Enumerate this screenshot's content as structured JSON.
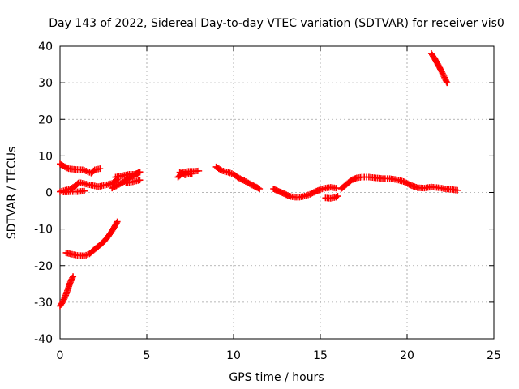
{
  "chart_data": {
    "type": "scatter",
    "title": "Day 143 of 2022, Sidereal Day-to-day VTEC variation (SDTVAR) for receiver vis0",
    "xlabel": "GPS time / hours",
    "ylabel": "SDTVAR / TECUs",
    "xlim": [
      0,
      25
    ],
    "ylim": [
      -40,
      40
    ],
    "xticks": [
      0,
      5,
      10,
      15,
      20,
      25
    ],
    "yticks": [
      -40,
      -30,
      -20,
      -10,
      0,
      10,
      20,
      30,
      40
    ],
    "grid": true,
    "marker": "plus",
    "color": "#ff0000",
    "series": [
      {
        "name": "arc-1",
        "points": [
          [
            0.0,
            -31
          ],
          [
            0.15,
            -30
          ],
          [
            0.3,
            -28.5
          ],
          [
            0.45,
            -26.5
          ],
          [
            0.6,
            -24.5
          ],
          [
            0.75,
            -23
          ]
        ]
      },
      {
        "name": "arc-2",
        "points": [
          [
            0.35,
            -16.5
          ],
          [
            0.6,
            -16.8
          ],
          [
            1.0,
            -17.2
          ],
          [
            1.4,
            -17.3
          ],
          [
            1.7,
            -16.8
          ],
          [
            2.0,
            -15.5
          ],
          [
            2.4,
            -14
          ],
          [
            2.7,
            -12.5
          ],
          [
            3.0,
            -10.5
          ],
          [
            3.3,
            -8
          ]
        ]
      },
      {
        "name": "arc-3",
        "points": [
          [
            0.0,
            7.8
          ],
          [
            0.2,
            7.2
          ],
          [
            0.5,
            6.5
          ],
          [
            0.9,
            6.3
          ],
          [
            1.3,
            6.2
          ],
          [
            1.6,
            5.7
          ],
          [
            1.8,
            5.3
          ],
          [
            2.0,
            6.2
          ],
          [
            2.3,
            6.5
          ]
        ]
      },
      {
        "name": "arc-4",
        "points": [
          [
            0.0,
            0.2
          ],
          [
            0.3,
            0.6
          ],
          [
            0.6,
            1.0
          ],
          [
            0.9,
            1.8
          ],
          [
            1.1,
            2.8
          ],
          [
            1.4,
            2.4
          ],
          [
            1.8,
            2.0
          ],
          [
            2.2,
            1.6
          ],
          [
            2.6,
            2.0
          ],
          [
            3.0,
            2.5
          ],
          [
            3.3,
            3.5
          ]
        ]
      },
      {
        "name": "arc-5",
        "points": [
          [
            0.2,
            0.1
          ],
          [
            0.6,
            0.2
          ],
          [
            1.0,
            0.2
          ],
          [
            1.4,
            0.4
          ]
        ]
      },
      {
        "name": "arc-6",
        "points": [
          [
            3.0,
            1.2
          ],
          [
            3.4,
            2.2
          ],
          [
            3.7,
            3.0
          ],
          [
            4.0,
            4.0
          ],
          [
            4.3,
            4.8
          ],
          [
            4.6,
            5.6
          ]
        ]
      },
      {
        "name": "arc-7",
        "points": [
          [
            3.2,
            4.2
          ],
          [
            3.6,
            4.6
          ],
          [
            4.0,
            5.0
          ],
          [
            4.3,
            5.0
          ],
          [
            4.6,
            5.5
          ]
        ]
      },
      {
        "name": "arc-8",
        "points": [
          [
            3.8,
            2.6
          ],
          [
            4.2,
            2.9
          ],
          [
            4.6,
            3.4
          ]
        ]
      },
      {
        "name": "arc-9",
        "points": [
          [
            6.8,
            4.2
          ],
          [
            7.1,
            5.5
          ],
          [
            7.4,
            5.8
          ],
          [
            7.7,
            5.8
          ],
          [
            8.0,
            5.9
          ]
        ]
      },
      {
        "name": "arc-10",
        "points": [
          [
            6.9,
            5.5
          ],
          [
            7.2,
            4.8
          ],
          [
            7.6,
            5.2
          ]
        ]
      },
      {
        "name": "arc-11",
        "points": [
          [
            9.0,
            7.0
          ],
          [
            9.3,
            6.0
          ],
          [
            9.7,
            5.5
          ],
          [
            10.0,
            5.0
          ],
          [
            10.3,
            4.0
          ],
          [
            10.7,
            3.0
          ],
          [
            11.0,
            2.2
          ],
          [
            11.3,
            1.5
          ],
          [
            11.5,
            1.0
          ]
        ]
      },
      {
        "name": "arc-12",
        "points": [
          [
            12.3,
            1.0
          ],
          [
            12.6,
            0.3
          ],
          [
            12.9,
            -0.3
          ],
          [
            13.2,
            -1.0
          ],
          [
            13.5,
            -1.3
          ],
          [
            13.8,
            -1.3
          ],
          [
            14.1,
            -1.0
          ],
          [
            14.4,
            -0.5
          ],
          [
            14.7,
            0.2
          ],
          [
            15.0,
            0.8
          ],
          [
            15.3,
            1.2
          ],
          [
            15.6,
            1.4
          ],
          [
            15.9,
            1.2
          ]
        ]
      },
      {
        "name": "arc-13",
        "points": [
          [
            15.3,
            -1.5
          ],
          [
            15.6,
            -1.6
          ],
          [
            15.9,
            -1.3
          ],
          [
            16.0,
            -1.0
          ]
        ]
      },
      {
        "name": "arc-14",
        "points": [
          [
            16.2,
            1.0
          ],
          [
            16.5,
            2.2
          ],
          [
            16.8,
            3.4
          ],
          [
            17.1,
            4.0
          ],
          [
            17.4,
            4.2
          ],
          [
            17.8,
            4.2
          ],
          [
            18.2,
            4.0
          ],
          [
            18.6,
            3.8
          ],
          [
            19.0,
            3.8
          ],
          [
            19.4,
            3.5
          ],
          [
            19.8,
            3.0
          ],
          [
            20.2,
            2.0
          ],
          [
            20.6,
            1.3
          ],
          [
            21.0,
            1.2
          ],
          [
            21.4,
            1.5
          ],
          [
            21.8,
            1.3
          ],
          [
            22.2,
            1.0
          ],
          [
            22.6,
            0.8
          ],
          [
            22.9,
            0.6
          ]
        ]
      },
      {
        "name": "arc-15",
        "points": [
          [
            21.4,
            38
          ],
          [
            21.6,
            36.5
          ],
          [
            21.8,
            34.8
          ],
          [
            22.0,
            33.0
          ],
          [
            22.2,
            31.0
          ],
          [
            22.3,
            30.0
          ]
        ]
      }
    ]
  }
}
